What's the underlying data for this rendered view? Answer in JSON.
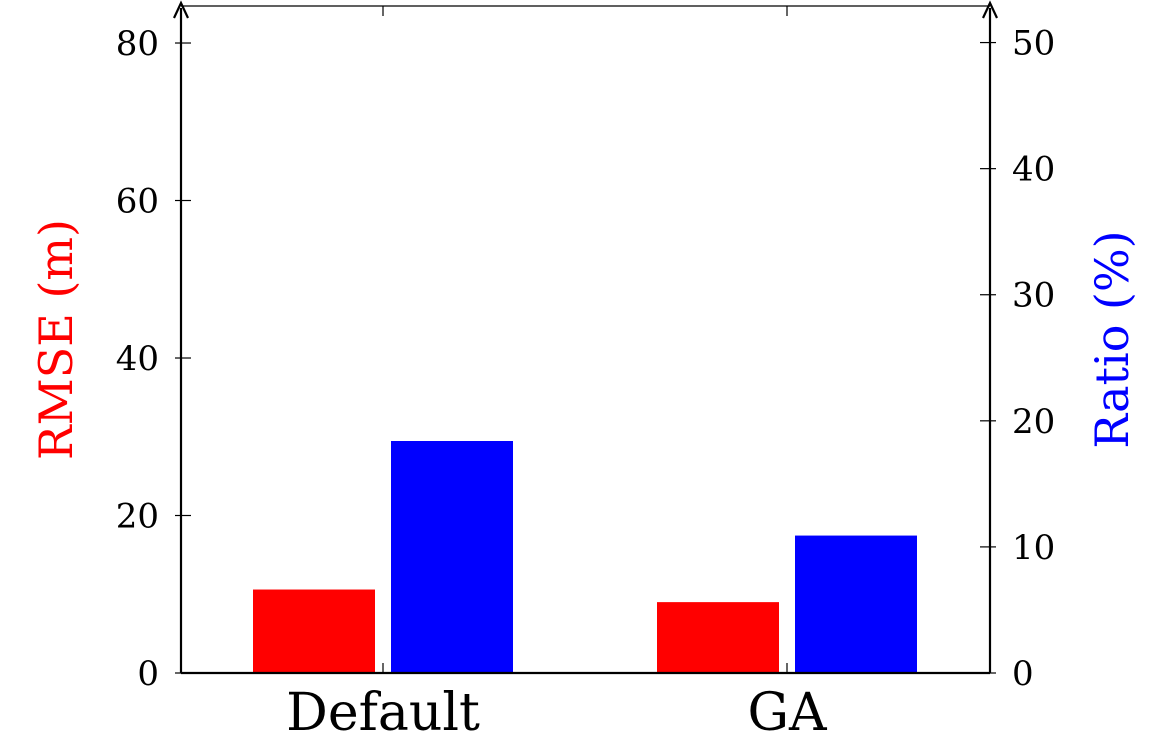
{
  "chart_data": {
    "type": "bar",
    "categories": [
      "Default",
      "GA"
    ],
    "series": [
      {
        "axis": "left",
        "color": "#ff0000",
        "values": [
          10.6,
          9.0
        ]
      },
      {
        "axis": "right",
        "color": "#0000ff",
        "values": [
          18.4,
          10.9
        ]
      }
    ],
    "ylabel_left": "RMSE (m)",
    "ylabel_right": "Ratio (%)",
    "ylim_left": [
      0,
      84.7
    ],
    "ylim_right": [
      0,
      52.9
    ],
    "yticks_left": [
      0,
      20,
      40,
      60,
      80
    ],
    "yticks_right": [
      0,
      10,
      20,
      30,
      40,
      50
    ],
    "left_label_color": "#ff0000",
    "right_label_color": "#0000ff",
    "grid": false,
    "legend": "none"
  }
}
